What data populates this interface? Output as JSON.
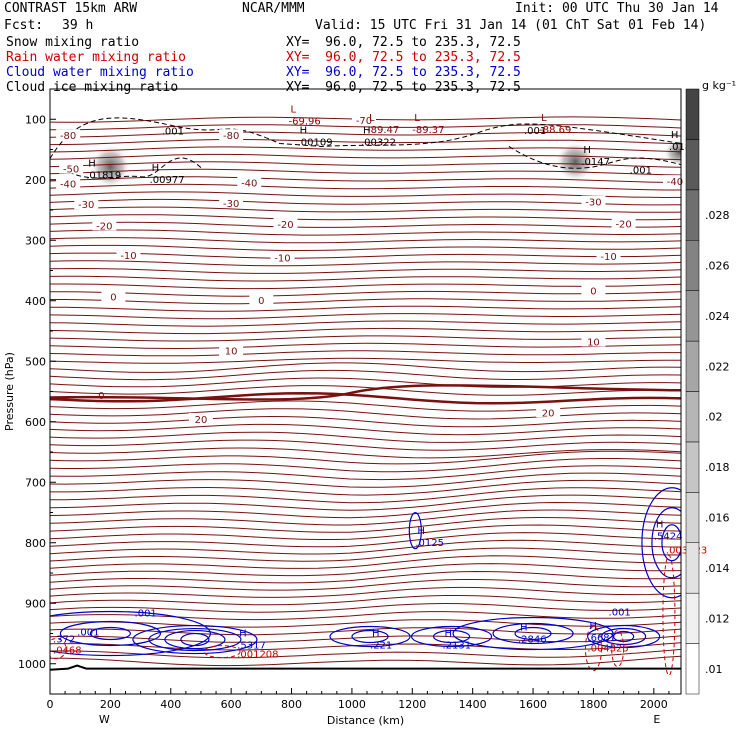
{
  "header": {
    "title": "CONTRAST 15km ARW",
    "center": "NCAR/MMM",
    "init": "Init: 00 UTC Thu 30 Jan 14",
    "fcst_label": "Fcst:",
    "fcst_value": "39 h",
    "valid": "Valid: 15 UTC Fri 31 Jan 14 (01 ChT Sat 01 Feb 14)"
  },
  "fields": [
    {
      "name": "Snow mixing ratio",
      "xy": "XY=  96.0, 72.5 to 235.3, 72.5",
      "color": "#000000"
    },
    {
      "name": "Rain water mixing ratio",
      "xy": "XY=  96.0, 72.5 to 235.3, 72.5",
      "color": "#cc0000"
    },
    {
      "name": "Cloud water mixing ratio",
      "xy": "XY=  96.0, 72.5 to 235.3, 72.5",
      "color": "#0000cc"
    },
    {
      "name": "Cloud ice mixing ratio",
      "xy": "XY=  96.0, 72.5 to 235.3, 72.5",
      "color": "#000000"
    }
  ],
  "chart_data": {
    "type": "contour",
    "xlabel": "Distance (km)",
    "ylabel": "Pressure (hPa)",
    "xlim": [
      0,
      2090
    ],
    "ylim": [
      1050,
      50
    ],
    "xticks": [
      0,
      200,
      400,
      600,
      800,
      1000,
      1200,
      1400,
      1600,
      1800,
      2000
    ],
    "yticks": [
      100,
      200,
      300,
      400,
      500,
      600,
      700,
      800,
      900,
      1000
    ],
    "endpoints": {
      "west": "W",
      "east": "E"
    },
    "colorbar": {
      "unit": "g kg⁻¹",
      "ticks": [
        ".01",
        ".012",
        ".014",
        ".016",
        ".018",
        ".02",
        ".022",
        ".024",
        ".026",
        ".028"
      ],
      "grays": [
        "#ffffff",
        "#f0f0f0",
        "#e2e2e2",
        "#d4d4d4",
        "#c5c5c5",
        "#b6b6b6",
        "#a6a6a6",
        "#959595",
        "#838383",
        "#6f6f6f",
        "#5a5a5a",
        "#444444"
      ]
    },
    "temperature_labels": [
      "-80",
      "-70",
      "-60",
      "-50",
      "-40",
      "-30",
      "-20",
      "-10",
      "0",
      "10",
      "20"
    ],
    "extrema_labels": [
      {
        "kind": "H",
        "value": ".01819",
        "color": "#000000"
      },
      {
        "kind": "H",
        "value": ".00977",
        "color": "#000000"
      },
      {
        "kind": "H",
        "value": ".00109",
        "color": "#000000"
      },
      {
        "kind": "H",
        "value": ".00322",
        "color": "#000000"
      },
      {
        "kind": "H",
        "value": ".0147",
        "color": "#000000"
      },
      {
        "kind": "H",
        "value": ".0183",
        "color": "#000000"
      },
      {
        "kind": "L",
        "value": "-69.96",
        "color": "#8b0000"
      },
      {
        "kind": "L",
        "value": "-89.47",
        "color": "#8b0000"
      },
      {
        "kind": "L",
        "value": "-89.37",
        "color": "#8b0000"
      },
      {
        "kind": "L",
        "value": "-88.69",
        "color": "#8b0000"
      },
      {
        "kind": "H",
        "value": ".0125",
        "color": "#0000cc"
      },
      {
        "kind": "H",
        "value": ".5424",
        "color": "#0000cc"
      },
      {
        "kind": "H",
        "value": ".5317",
        "color": "#0000cc"
      },
      {
        "kind": "H",
        "value": ".221",
        "color": "#0000cc"
      },
      {
        "kind": "H",
        "value": ".2131",
        "color": "#0000cc"
      },
      {
        "kind": "H",
        "value": ".2846",
        "color": "#0000cc"
      },
      {
        "kind": "H",
        "value": ".6681",
        "color": "#0000cc"
      },
      {
        "kind": "",
        "value": ".372",
        "color": "#0000cc"
      },
      {
        "kind": "",
        "value": ".001",
        "color": "#0000cc"
      },
      {
        "kind": "",
        "value": ".003723",
        "color": "#cc0000"
      },
      {
        "kind": "",
        "value": ".001208",
        "color": "#cc0000"
      },
      {
        "kind": "",
        "value": ".004325",
        "color": "#cc0000"
      },
      {
        "kind": "",
        "value": ".0468",
        "color": "#cc0000"
      },
      {
        "kind": "",
        "value": ".001",
        "color": "#000000"
      }
    ]
  }
}
